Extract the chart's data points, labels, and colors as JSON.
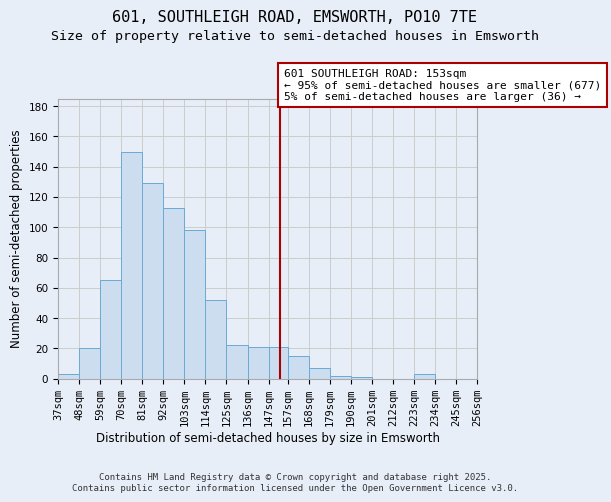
{
  "title": "601, SOUTHLEIGH ROAD, EMSWORTH, PO10 7TE",
  "subtitle": "Size of property relative to semi-detached houses in Emsworth",
  "xlabel": "Distribution of semi-detached houses by size in Emsworth",
  "ylabel": "Number of semi-detached properties",
  "bin_labels": [
    "37sqm",
    "48sqm",
    "59sqm",
    "70sqm",
    "81sqm",
    "92sqm",
    "103sqm",
    "114sqm",
    "125sqm",
    "136sqm",
    "147sqm",
    "157sqm",
    "168sqm",
    "179sqm",
    "190sqm",
    "201sqm",
    "212sqm",
    "223sqm",
    "234sqm",
    "245sqm",
    "256sqm"
  ],
  "bar_heights": [
    3,
    20,
    65,
    150,
    129,
    113,
    98,
    52,
    22,
    21,
    21,
    15,
    7,
    2,
    1,
    0,
    0,
    3,
    0,
    0,
    0
  ],
  "bar_color": "#ccddf0",
  "bar_edge_color": "#6aaad4",
  "grid_color": "#cccccc",
  "background_color": "#e8eef8",
  "vline_color": "#aa0000",
  "annotation_title": "601 SOUTHLEIGH ROAD: 153sqm",
  "annotation_line1": "← 95% of semi-detached houses are smaller (677)",
  "annotation_line2": "5% of semi-detached houses are larger (36) →",
  "annotation_box_facecolor": "white",
  "annotation_box_edgecolor": "#aa0000",
  "ylim": [
    0,
    185
  ],
  "yticks": [
    0,
    20,
    40,
    60,
    80,
    100,
    120,
    140,
    160,
    180
  ],
  "bin_edges": [
    37,
    48,
    59,
    70,
    81,
    92,
    103,
    114,
    125,
    136,
    147,
    157,
    168,
    179,
    190,
    201,
    212,
    223,
    234,
    245,
    256
  ],
  "title_fontsize": 11,
  "subtitle_fontsize": 9.5,
  "axis_label_fontsize": 8.5,
  "tick_fontsize": 7.5,
  "annotation_fontsize": 8,
  "footer_fontsize": 6.5,
  "footer1": "Contains HM Land Registry data © Crown copyright and database right 2025.",
  "footer2": "Contains public sector information licensed under the Open Government Licence v3.0.",
  "vline_x": 153
}
